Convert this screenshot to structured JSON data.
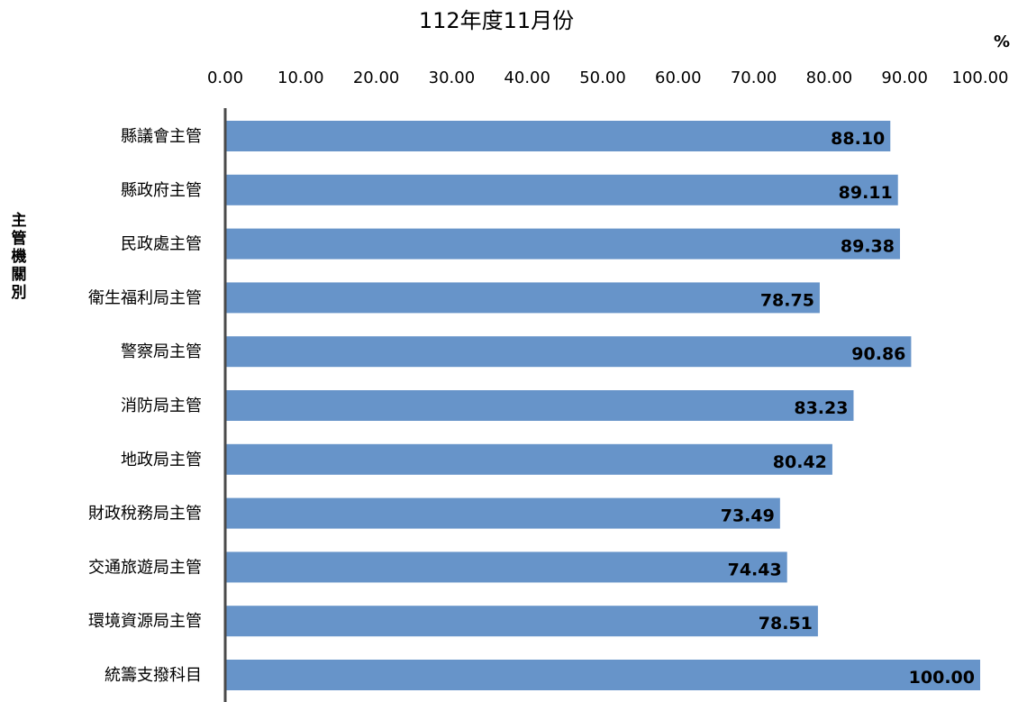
{
  "chart_data": {
    "type": "bar",
    "orientation": "horizontal",
    "title": "112年度11月份",
    "unit": "%",
    "ylabel": "主管機關別",
    "xlim": [
      0,
      100
    ],
    "x_ticks": [
      "0.00",
      "10.00",
      "20.00",
      "30.00",
      "40.00",
      "50.00",
      "60.00",
      "70.00",
      "80.00",
      "90.00",
      "100.00"
    ],
    "x_axis_position": "top",
    "grid": false,
    "bar_color": "#6794c9",
    "categories": [
      "縣議會主管",
      "縣政府主管",
      "民政處主管",
      "衛生福利局主管",
      "警察局主管",
      "消防局主管",
      "地政局主管",
      "財政稅務局主管",
      "交通旅遊局主管",
      "環境資源局主管",
      "統籌支撥科目"
    ],
    "values": [
      88.1,
      89.11,
      89.38,
      78.75,
      90.86,
      83.23,
      80.42,
      73.49,
      74.43,
      78.51,
      100.0
    ],
    "value_labels": [
      "88.10",
      "89.11",
      "89.38",
      "78.75",
      "90.86",
      "83.23",
      "80.42",
      "73.49",
      "74.43",
      "78.51",
      "100.00"
    ]
  }
}
